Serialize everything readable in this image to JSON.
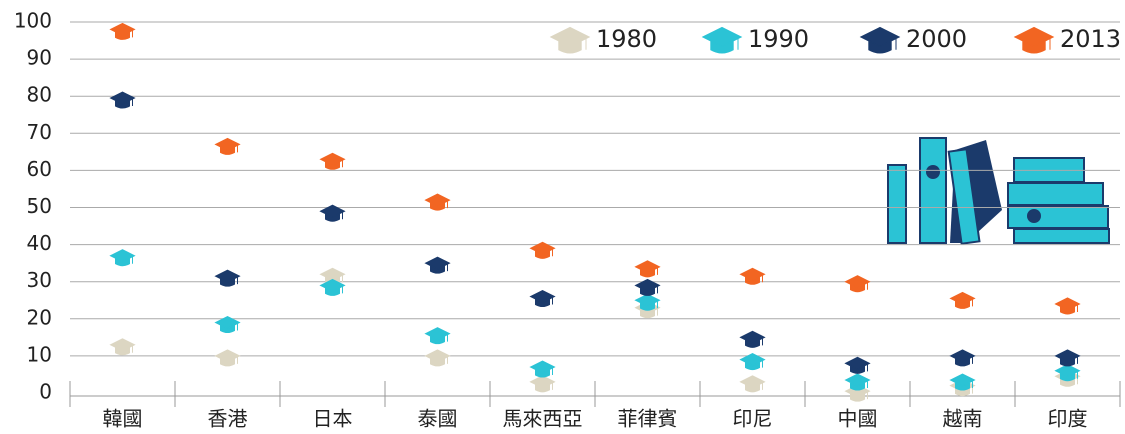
{
  "chart_data": {
    "type": "dot",
    "categories": [
      "韓國",
      "香港",
      "日本",
      "泰國",
      "馬來西亞",
      "菲律賓",
      "印尼",
      "中國",
      "越南",
      "印度"
    ],
    "series": [
      {
        "name": "1980",
        "color": "#dcd6c2",
        "values": [
          13,
          10,
          32,
          10,
          3,
          23,
          3,
          0.5,
          2,
          4.5
        ]
      },
      {
        "name": "1990",
        "color": "#2bc3d5",
        "values": [
          37,
          19,
          29,
          16,
          7,
          25,
          9,
          3.5,
          3.5,
          6
        ]
      },
      {
        "name": "2000",
        "color": "#1b3a6b",
        "values": [
          79.5,
          31.5,
          49,
          35,
          26,
          29,
          15,
          8,
          10,
          10
        ]
      },
      {
        "name": "2013",
        "color": "#f26522",
        "values": [
          98,
          67,
          63,
          52,
          39,
          34,
          32,
          30,
          25.5,
          24
        ]
      }
    ],
    "ylim": [
      0,
      100
    ],
    "yticks": [
      0,
      10,
      20,
      30,
      40,
      50,
      60,
      70,
      80,
      90,
      100
    ],
    "grid": true,
    "legend": "upper right"
  }
}
